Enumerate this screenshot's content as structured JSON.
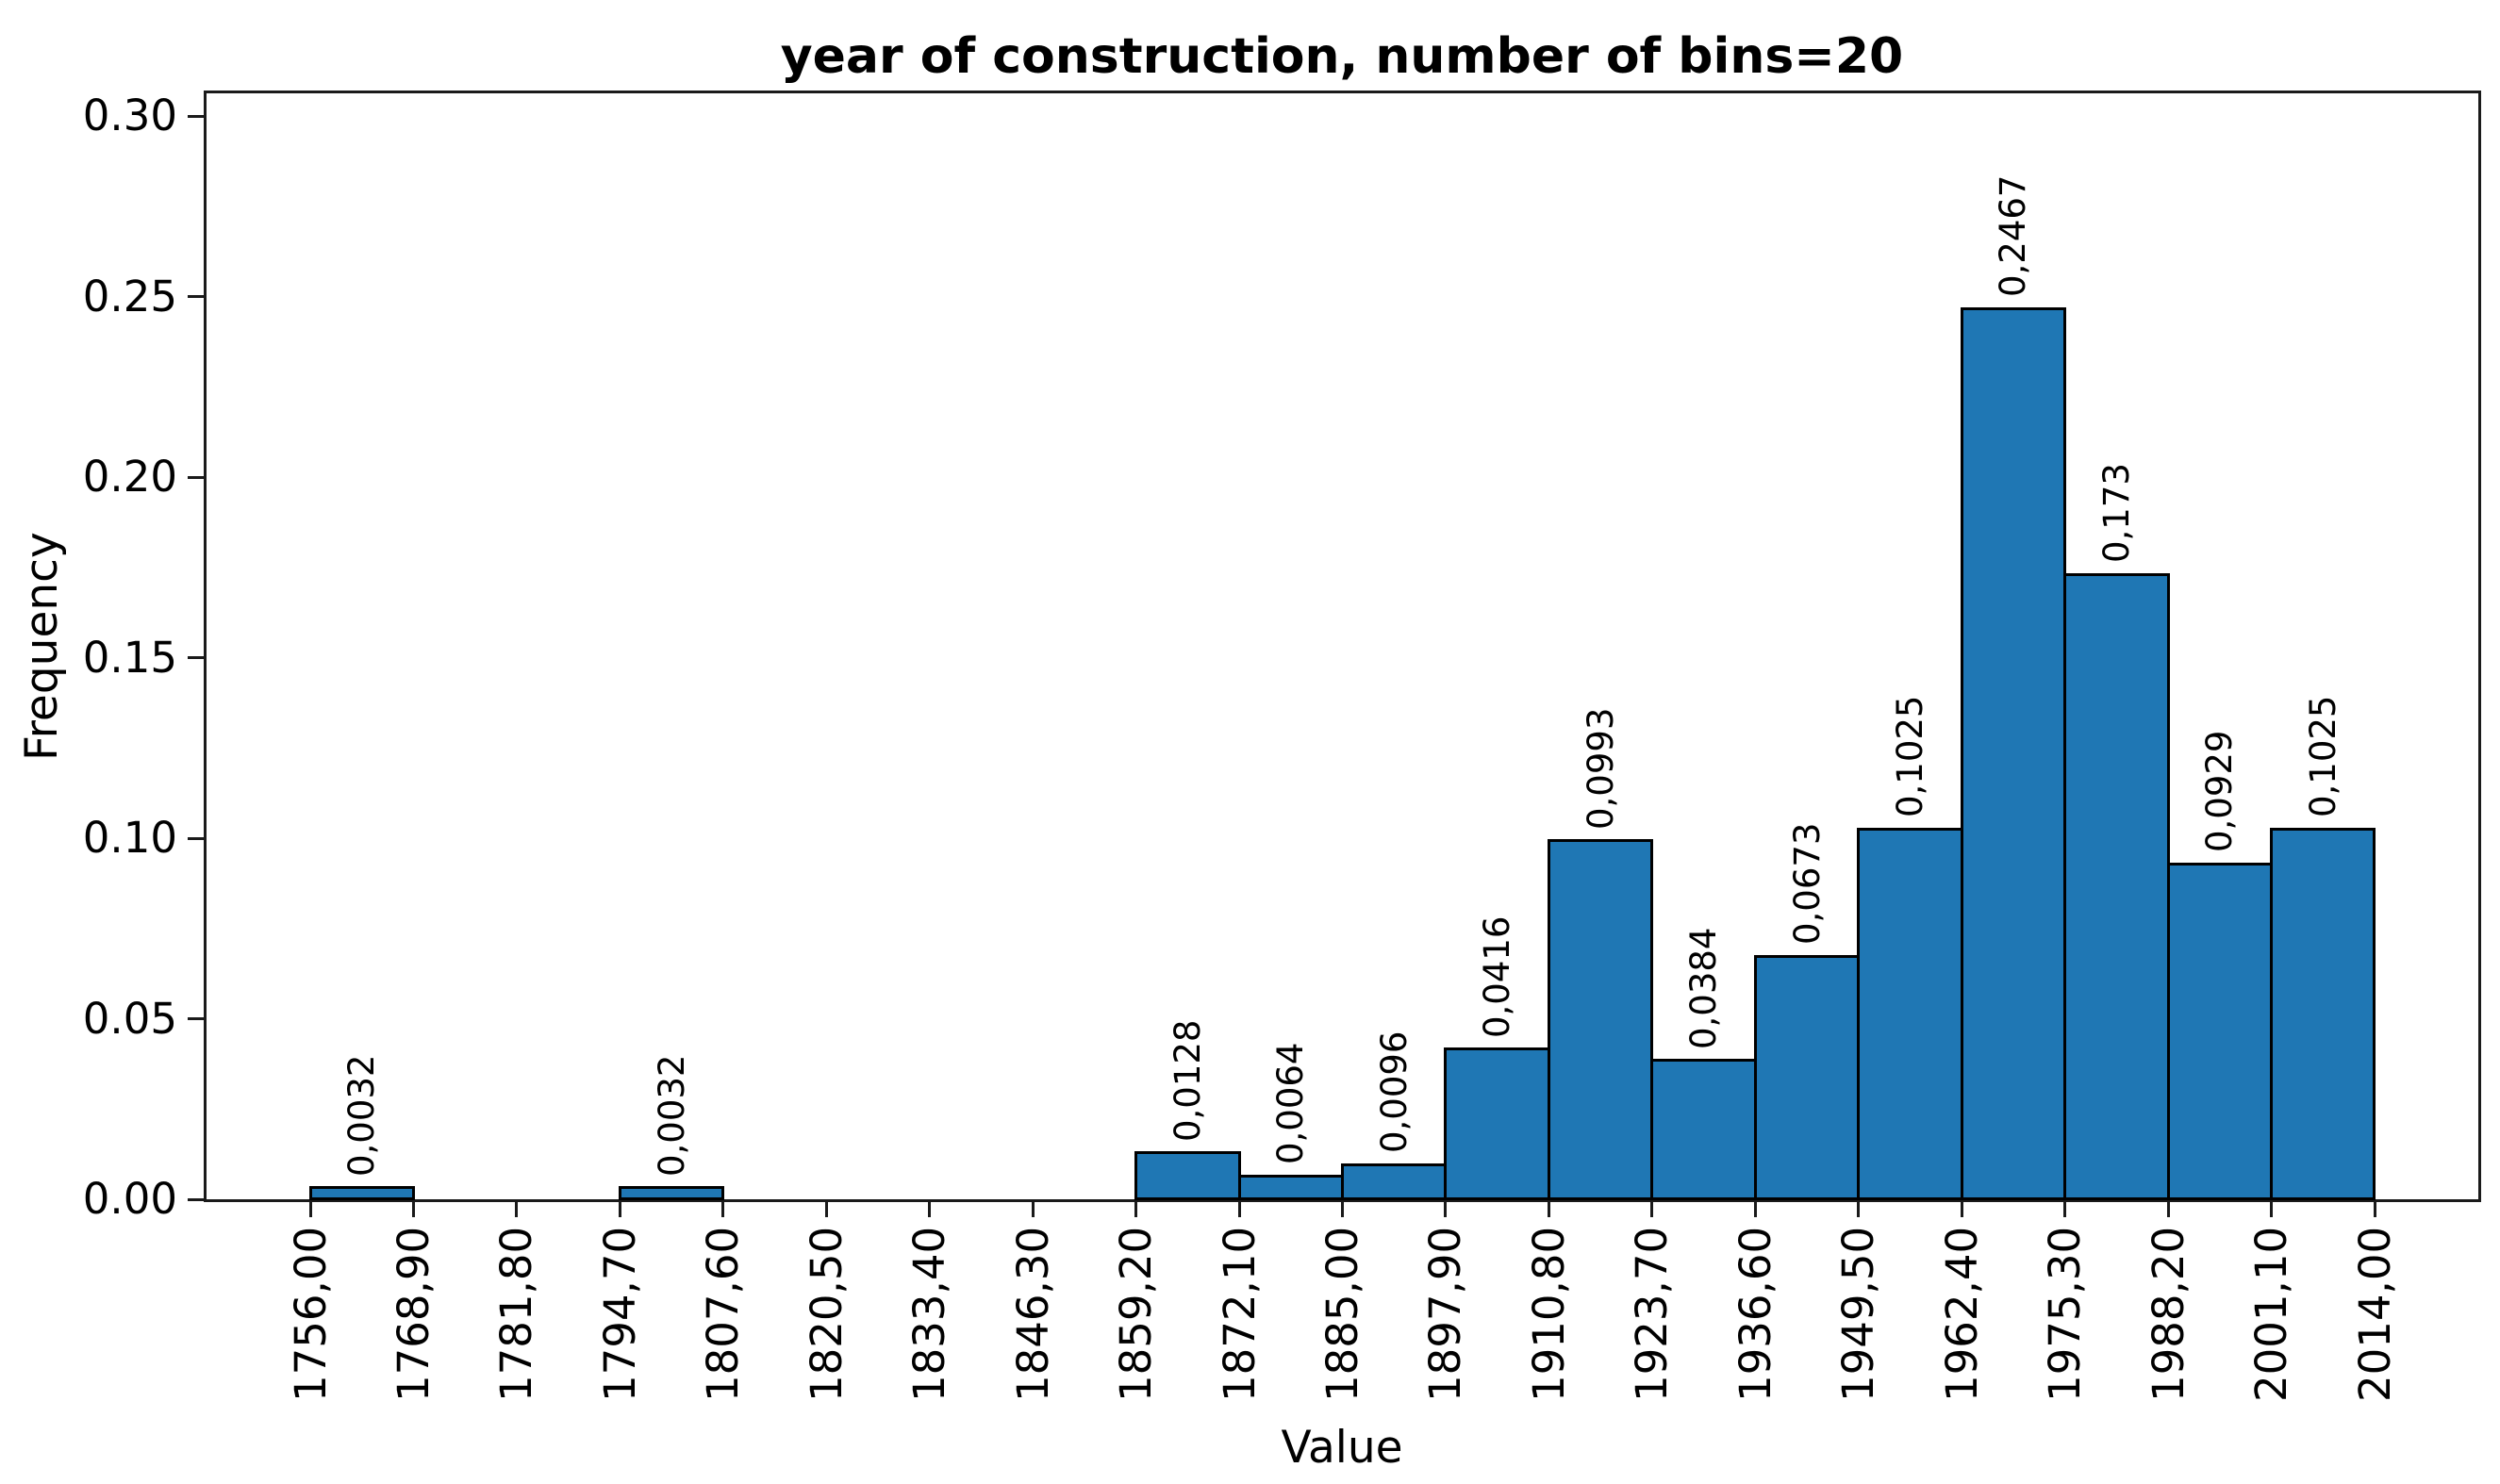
{
  "chart_data": {
    "type": "bar",
    "subtype": "histogram",
    "title": "year of construction, number of bins=20",
    "xlabel": "Value",
    "ylabel": "Frequency",
    "bin_edges": [
      1756.0,
      1768.9,
      1781.8,
      1794.7,
      1807.6,
      1820.5,
      1833.4,
      1846.3,
      1859.2,
      1872.1,
      1885.0,
      1897.9,
      1910.8,
      1923.7,
      1936.6,
      1949.5,
      1962.4,
      1975.3,
      1988.2,
      2001.1,
      2014.0
    ],
    "values": [
      0.0032,
      0,
      0,
      0.0032,
      0,
      0,
      0,
      0,
      0.0128,
      0.0064,
      0.0096,
      0.0416,
      0.0993,
      0.0384,
      0.0673,
      0.1025,
      0.2467,
      0.173,
      0.0929,
      0.1025
    ],
    "bar_labels": [
      "0,0032",
      "",
      "",
      "0,0032",
      "",
      "",
      "",
      "",
      "0,0128",
      "0,0064",
      "0,0096",
      "0,0416",
      "0,0993",
      "0,0384",
      "0,0673",
      "0,1025",
      "0,2467",
      "0,173",
      "0,0929",
      "0,1025"
    ],
    "x_tick_labels": [
      "1756,00",
      "1768,90",
      "1781,80",
      "1794,70",
      "1807,60",
      "1820,50",
      "1833,40",
      "1846,30",
      "1859,20",
      "1872,10",
      "1885,00",
      "1897,90",
      "1910,80",
      "1923,70",
      "1936,60",
      "1949,50",
      "1962,40",
      "1975,30",
      "1988,20",
      "2001,10",
      "2014,00"
    ],
    "y_tick_labels": [
      "0.00",
      "0.05",
      "0.10",
      "0.15",
      "0.20",
      "0.25",
      "0.30"
    ],
    "y_tick_values": [
      0,
      0.05,
      0.1,
      0.15,
      0.2,
      0.25,
      0.3
    ],
    "ylim": [
      0,
      0.3065
    ],
    "grid": false,
    "legend": null,
    "bar_color": "#1f77b4",
    "bar_edge_color": "#000000",
    "axis_color": "#1a1a1a",
    "text_color": "#000000"
  }
}
